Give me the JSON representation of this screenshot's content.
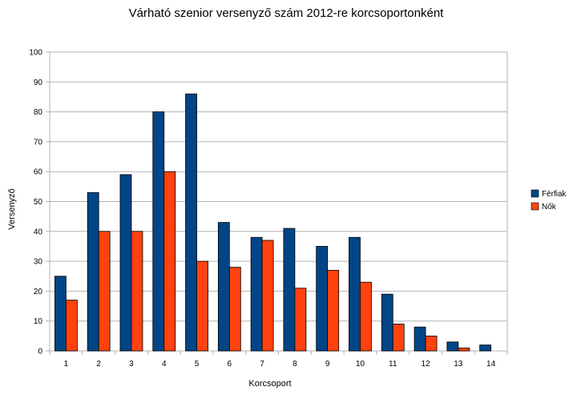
{
  "chart_data": {
    "type": "bar",
    "title": "Várható szenior versenyző szám 2012-re korcsoportonként",
    "xlabel": "Korcsoport",
    "ylabel": "Versenyző",
    "categories": [
      "1",
      "2",
      "3",
      "4",
      "5",
      "6",
      "7",
      "8",
      "9",
      "10",
      "11",
      "12",
      "13",
      "14"
    ],
    "series": [
      {
        "name": "Férfiak",
        "color": "#004586",
        "values": [
          25,
          53,
          59,
          80,
          86,
          43,
          38,
          41,
          35,
          38,
          19,
          8,
          3,
          2
        ]
      },
      {
        "name": "Nők",
        "color": "#ff420e",
        "values": [
          17,
          40,
          40,
          60,
          30,
          28,
          37,
          21,
          27,
          23,
          9,
          5,
          1,
          0
        ]
      }
    ],
    "ylim": [
      0,
      100
    ],
    "yticks": [
      0,
      10,
      20,
      30,
      40,
      50,
      60,
      70,
      80,
      90,
      100
    ],
    "grid": true,
    "legend_position": "right"
  }
}
